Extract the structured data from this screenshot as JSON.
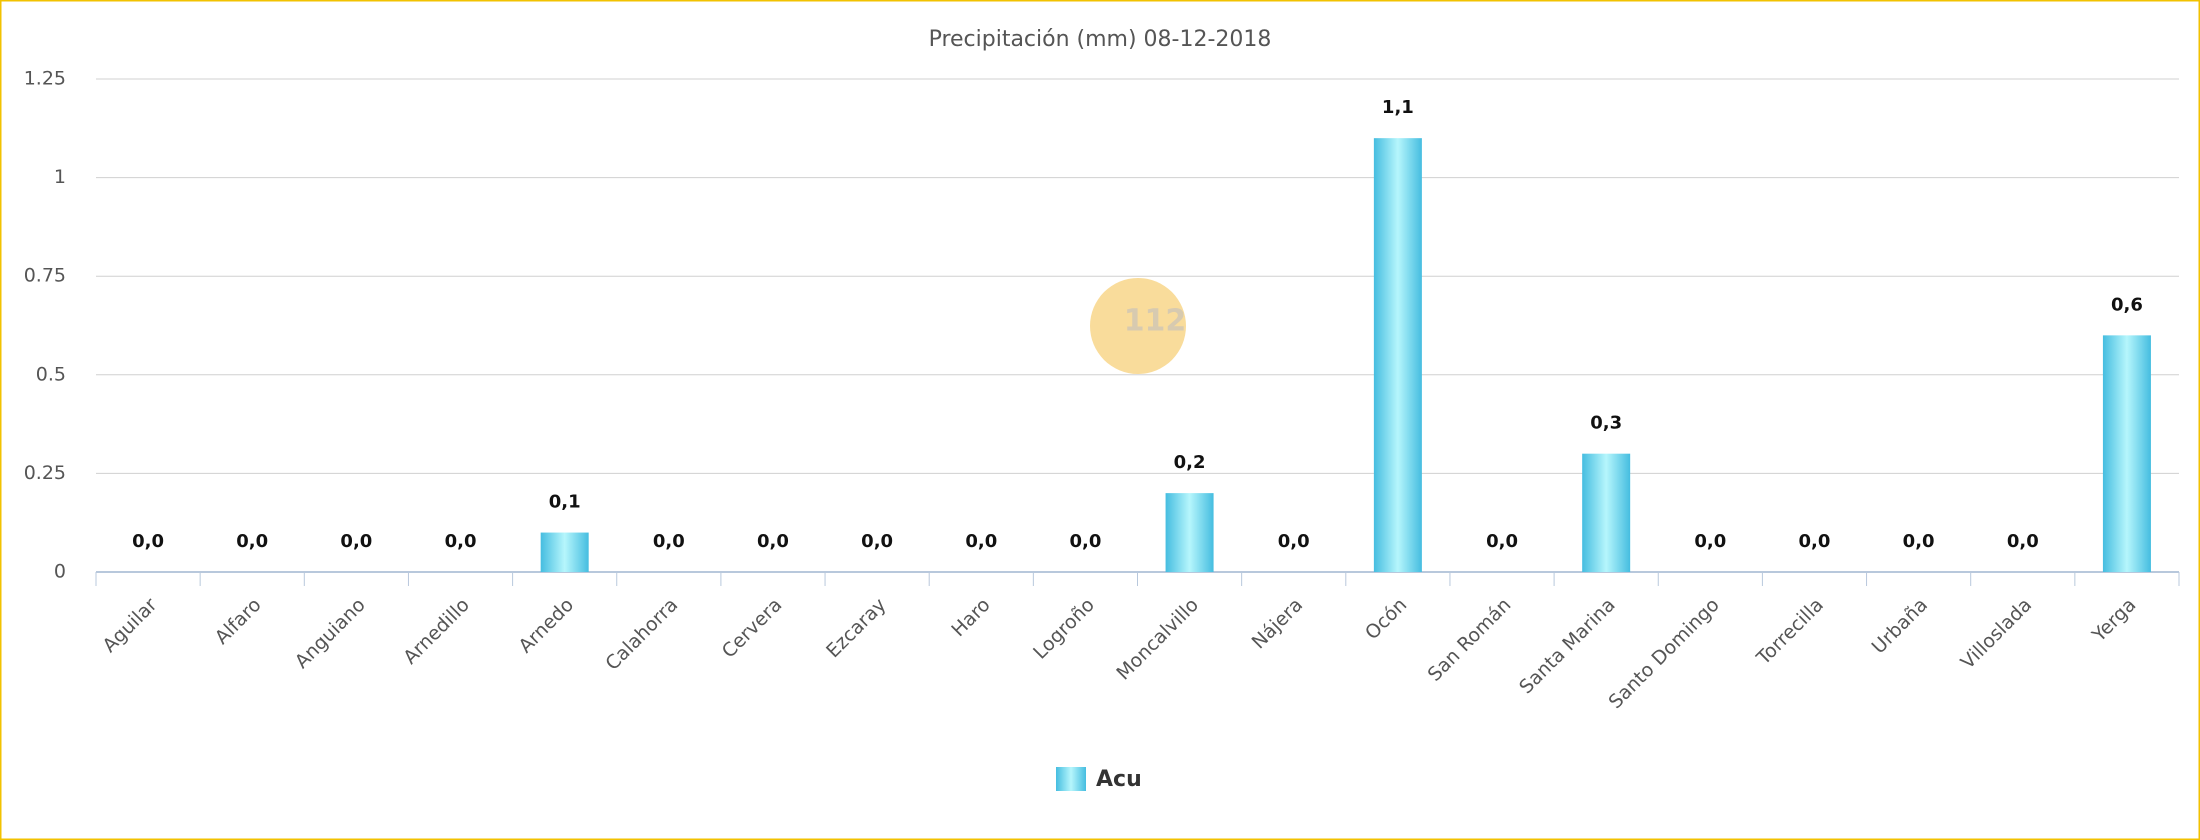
{
  "chart_data": {
    "type": "bar",
    "title": "Precipitación (mm) 08-12-2018",
    "categories": [
      "Aguilar",
      "Alfaro",
      "Anguiano",
      "Arnedillo",
      "Arnedo",
      "Calahorra",
      "Cervera",
      "Ezcaray",
      "Haro",
      "Logroño",
      "Moncalvillo",
      "Nájera",
      "Ocón",
      "San Román",
      "Santa Marina",
      "Santo Domingo",
      "Torrecilla",
      "Urbaña",
      "Villoslada",
      "Yerga"
    ],
    "series": [
      {
        "name": "Acu",
        "color": "#45bde0",
        "values": [
          0,
          0,
          0,
          0,
          0.1,
          0,
          0,
          0,
          0,
          0,
          0.2,
          0,
          1.1,
          0,
          0.3,
          0,
          0,
          0,
          0,
          0.6
        ],
        "value_labels": [
          "0,0",
          "0,0",
          "0,0",
          "0,0",
          "0,1",
          "0,0",
          "0,0",
          "0,0",
          "0,0",
          "0,0",
          "0,2",
          "0,0",
          "1,1",
          "0,0",
          "0,3",
          "0,0",
          "0,0",
          "0,0",
          "0,0",
          "0,6"
        ]
      }
    ],
    "ylim": [
      0,
      1.25
    ],
    "yticks": [
      0,
      0.25,
      0.5,
      0.75,
      1,
      1.25
    ],
    "grid": true,
    "legend": "bottom",
    "watermark": "112"
  }
}
